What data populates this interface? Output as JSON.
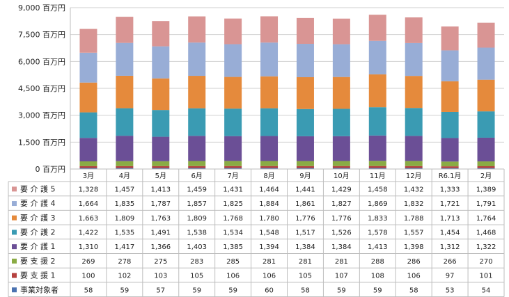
{
  "chart_data": {
    "type": "bar",
    "stacked": true,
    "categories": [
      "3月",
      "4月",
      "5月",
      "6月",
      "7月",
      "8月",
      "9月",
      "10月",
      "11月",
      "12月",
      "R6.1月",
      "2月"
    ],
    "y_ticks": [
      "0 百万円",
      "1,500 百万円",
      "3,000 百万円",
      "4,500 百万円",
      "6,000 百万円",
      "7,500 百万円",
      "9,000 百万円"
    ],
    "ylim": [
      0,
      9000
    ],
    "grid": true,
    "legend": "table-below",
    "series": [
      {
        "name": "事業対象者",
        "color": "#4a72b0",
        "values": [
          58,
          59,
          57,
          59,
          59,
          60,
          58,
          59,
          59,
          58,
          53,
          54
        ],
        "labels": [
          "58",
          "59",
          "57",
          "59",
          "59",
          "60",
          "58",
          "59",
          "59",
          "58",
          "53",
          "54"
        ]
      },
      {
        "name": "要 支 援 1",
        "color": "#b5413f",
        "values": [
          100,
          102,
          103,
          105,
          106,
          106,
          105,
          107,
          108,
          106,
          97,
          101
        ],
        "labels": [
          "100",
          "102",
          "103",
          "105",
          "106",
          "106",
          "105",
          "107",
          "108",
          "106",
          "97",
          "101"
        ]
      },
      {
        "name": "要 支 援 2",
        "color": "#8aab44",
        "values": [
          269,
          278,
          275,
          283,
          285,
          281,
          281,
          281,
          288,
          286,
          266,
          270
        ],
        "labels": [
          "269",
          "278",
          "275",
          "283",
          "285",
          "281",
          "281",
          "281",
          "288",
          "286",
          "266",
          "270"
        ]
      },
      {
        "name": "要 介 護 1",
        "color": "#6b4f96",
        "values": [
          1310,
          1417,
          1366,
          1403,
          1385,
          1394,
          1384,
          1384,
          1413,
          1398,
          1312,
          1322
        ],
        "labels": [
          "1,310",
          "1,417",
          "1,366",
          "1,403",
          "1,385",
          "1,394",
          "1,384",
          "1,384",
          "1,413",
          "1,398",
          "1,312",
          "1,322"
        ]
      },
      {
        "name": "要 介 護 2",
        "color": "#3a9bb3",
        "values": [
          1422,
          1535,
          1491,
          1538,
          1534,
          1548,
          1517,
          1526,
          1578,
          1557,
          1454,
          1468
        ],
        "labels": [
          "1,422",
          "1,535",
          "1,491",
          "1,538",
          "1,534",
          "1,548",
          "1,517",
          "1,526",
          "1,578",
          "1,557",
          "1,454",
          "1,468"
        ]
      },
      {
        "name": "要 介 護 3",
        "color": "#e58a3c",
        "values": [
          1663,
          1809,
          1763,
          1809,
          1768,
          1780,
          1776,
          1776,
          1833,
          1788,
          1713,
          1764
        ],
        "labels": [
          "1,663",
          "1,809",
          "1,763",
          "1,809",
          "1,768",
          "1,780",
          "1,776",
          "1,776",
          "1,833",
          "1,788",
          "1,713",
          "1,764"
        ]
      },
      {
        "name": "要 介 護 4",
        "color": "#98add6",
        "values": [
          1664,
          1835,
          1787,
          1857,
          1825,
          1884,
          1861,
          1827,
          1869,
          1832,
          1721,
          1791
        ],
        "labels": [
          "1,664",
          "1,835",
          "1,787",
          "1,857",
          "1,825",
          "1,884",
          "1,861",
          "1,827",
          "1,869",
          "1,832",
          "1,721",
          "1,791"
        ]
      },
      {
        "name": "要 介 護 5",
        "color": "#d99594",
        "values": [
          1328,
          1457,
          1413,
          1459,
          1431,
          1464,
          1441,
          1429,
          1458,
          1432,
          1333,
          1389
        ],
        "labels": [
          "1,328",
          "1,457",
          "1,413",
          "1,459",
          "1,431",
          "1,464",
          "1,441",
          "1,429",
          "1,458",
          "1,432",
          "1,333",
          "1,389"
        ]
      }
    ]
  }
}
